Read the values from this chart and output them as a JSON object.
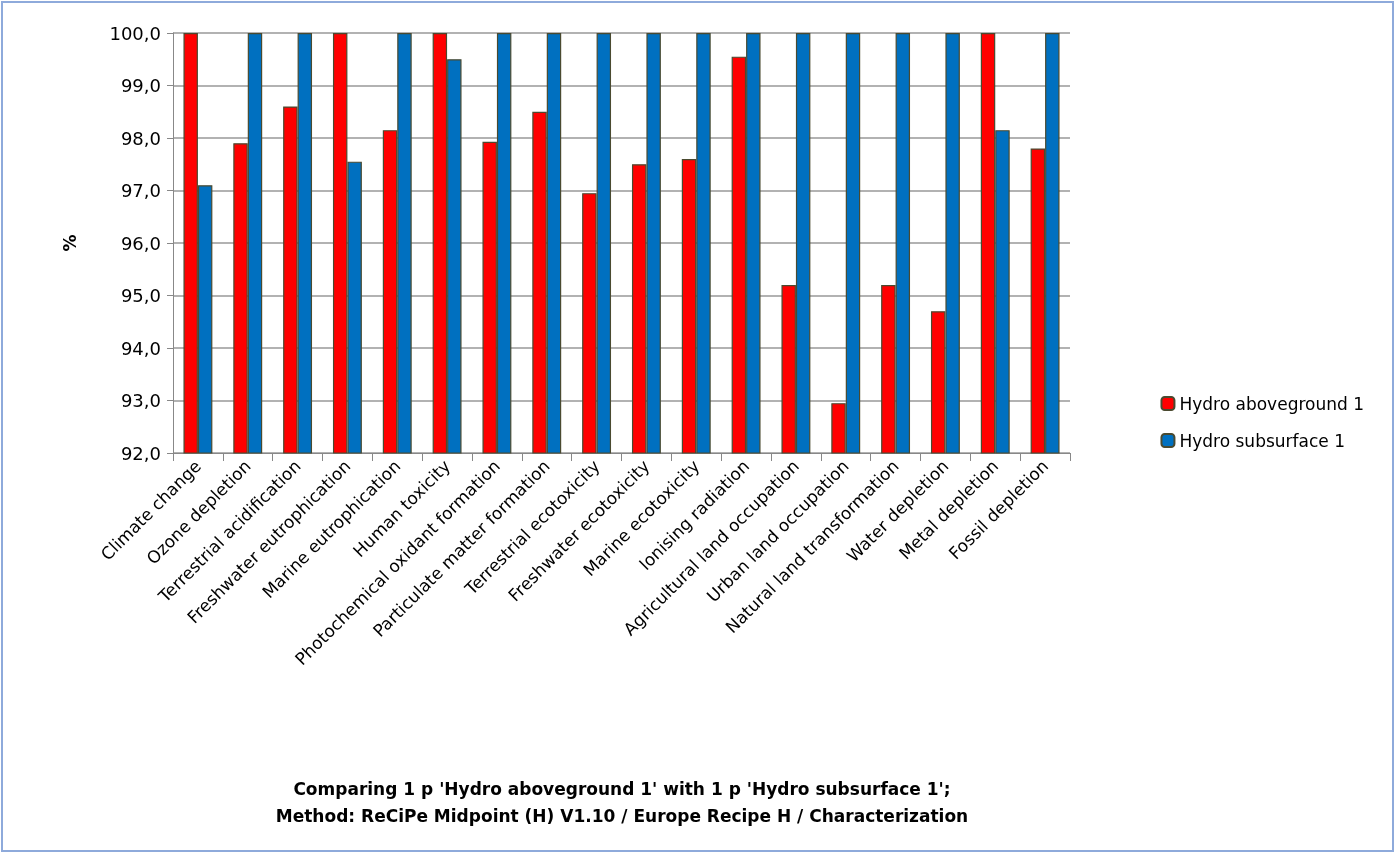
{
  "chart_data": {
    "type": "bar",
    "title": "Comparing 1 p 'Hydro aboveground 1' with 1 p 'Hydro subsurface 1';",
    "subtitle": "Method: ReCiPe Midpoint (H) V1.10 / Europe Recipe H / Characterization",
    "ylabel": "%",
    "categories": [
      "Climate change",
      "Ozone depletion",
      "Terrestrial acidification",
      "Freshwater eutrophication",
      "Marine eutrophication",
      "Human toxicity",
      "Photochemical oxidant formation",
      "Particulate matter formation",
      "Terrestrial ecotoxicity",
      "Freshwater ecotoxicity",
      "Marine ecotoxicity",
      "Ionising radiation",
      "Agricultural land occupation",
      "Urban land occupation",
      "Natural land transformation",
      "Water depletion",
      "Metal depletion",
      "Fossil depletion"
    ],
    "series": [
      {
        "name": "Hydro aboveground 1",
        "color": "#ff0000",
        "values": [
          100,
          97.9,
          98.6,
          100,
          98.15,
          100,
          97.93,
          98.5,
          96.95,
          97.5,
          97.6,
          99.55,
          95.2,
          92.95,
          95.2,
          94.7,
          100,
          97.8
        ]
      },
      {
        "name": "Hydro subsurface 1",
        "color": "#0070c0",
        "values": [
          97.1,
          100,
          100,
          97.55,
          100,
          99.5,
          100,
          100,
          100,
          100,
          100,
          100,
          100,
          100,
          100,
          100,
          98.15,
          100
        ]
      }
    ],
    "ylim": [
      92,
      100
    ],
    "yticks": [
      {
        "value": 92,
        "label": "92,0"
      },
      {
        "value": 93,
        "label": "93,0"
      },
      {
        "value": 94,
        "label": "94,0"
      },
      {
        "value": 95,
        "label": "95,0"
      },
      {
        "value": 96,
        "label": "96,0"
      },
      {
        "value": 97,
        "label": "97,0"
      },
      {
        "value": 98,
        "label": "98,0"
      },
      {
        "value": 99,
        "label": "99,0"
      },
      {
        "value": 100,
        "label": "100,0"
      }
    ],
    "grid": "y",
    "legend": "right"
  }
}
